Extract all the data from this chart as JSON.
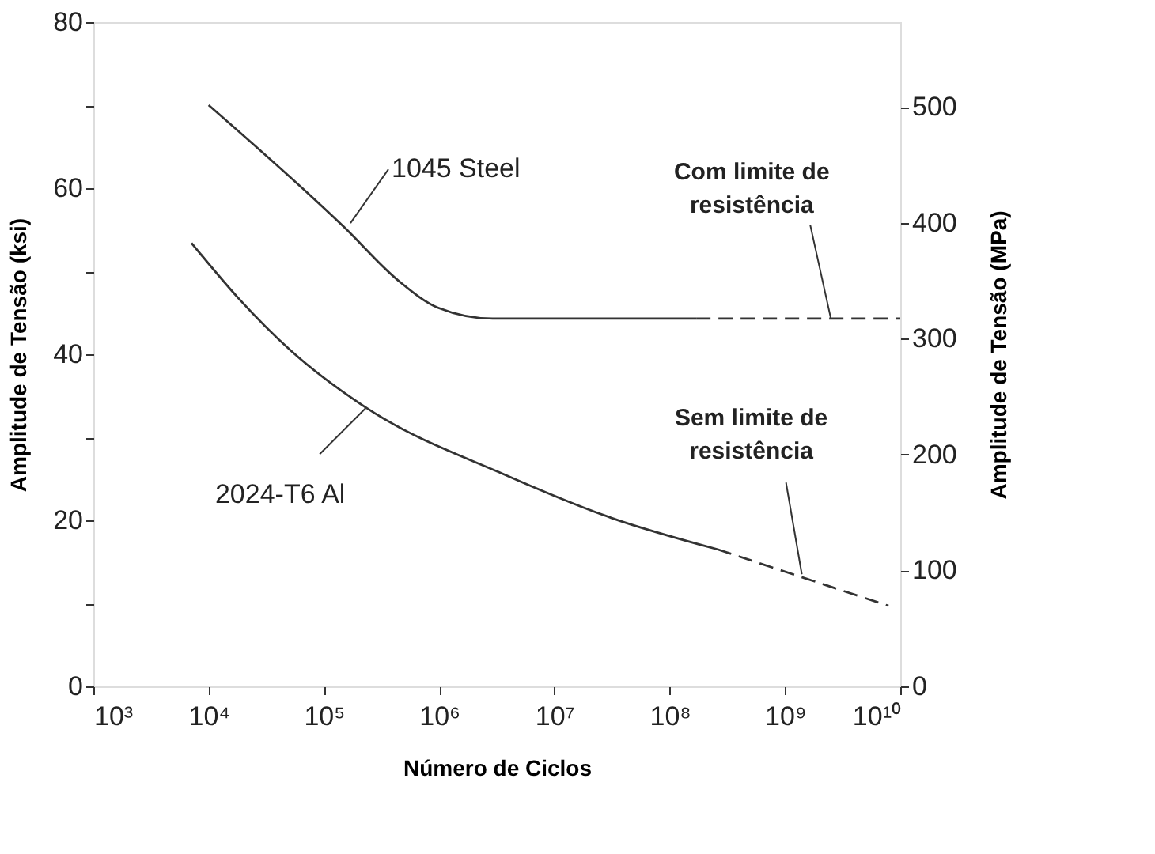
{
  "chart_data": {
    "type": "line",
    "xlabel": "Número de Ciclos",
    "ylabel": "Amplitude de Tensão (ksi)",
    "y2label": "Amplitude de Tensão (MPa)",
    "log": "x",
    "xlim": [
      1000,
      10000000000
    ],
    "xticks": [
      {
        "value": 1000,
        "label": "10³"
      },
      {
        "value": 10000,
        "label": "10⁴"
      },
      {
        "value": 100000,
        "label": "10⁵"
      },
      {
        "value": 1000000,
        "label": "10⁶"
      },
      {
        "value": 10000000,
        "label": "10⁷"
      },
      {
        "value": 100000000,
        "label": "10⁸"
      },
      {
        "value": 1000000000,
        "label": "10⁹"
      },
      {
        "value": 10000000000,
        "label": "10¹⁰"
      }
    ],
    "ylim": [
      0,
      80
    ],
    "yticks": [
      0,
      {
        "value": 10,
        "label": null
      },
      20,
      {
        "value": 30,
        "label": null
      },
      40,
      {
        "value": 50,
        "label": null
      },
      60,
      {
        "value": 70,
        "label": null
      },
      80
    ],
    "y2lim": [
      0,
      573
    ],
    "y2ticks": [
      0,
      100,
      200,
      300,
      400,
      500
    ],
    "grid": false,
    "marker": "none",
    "series": [
      {
        "color": "#333333",
        "line_style": "solid",
        "x": [
          10000,
          150000,
          440000,
          980000,
          2900000,
          170000000
        ],
        "values": [
          70,
          55.3,
          48.9,
          45.6,
          44.3,
          44.3
        ]
      },
      {
        "color": "#333333",
        "line_style": "dashed",
        "x": [
          170000000,
          10000000000
        ],
        "values": [
          44.3,
          44.3
        ]
      },
      {
        "color": "#333333",
        "line_style": "solid",
        "x": [
          7100,
          18000,
          52000,
          230000,
          3700000,
          31000000,
          260000000
        ],
        "values": [
          53.4,
          46.8,
          40.4,
          33.6,
          25.5,
          20.3,
          16.5
        ]
      },
      {
        "color": "#333333",
        "line_style": "dashed",
        "x": [
          260000000,
          7900000000
        ],
        "values": [
          16.5,
          9.7
        ]
      }
    ],
    "annotations": [
      {
        "text": "1045 Steel",
        "x": 170000,
        "y": 55.8
      },
      {
        "text": "2024-T6 Al",
        "x": 230000,
        "y": 33.5
      },
      {
        "text": "Com limite de\nresistência",
        "x": 2500000000,
        "y": 44.3
      },
      {
        "text": "Sem limite de\nresistência",
        "x": 1400000000,
        "y": 13.5
      }
    ]
  }
}
